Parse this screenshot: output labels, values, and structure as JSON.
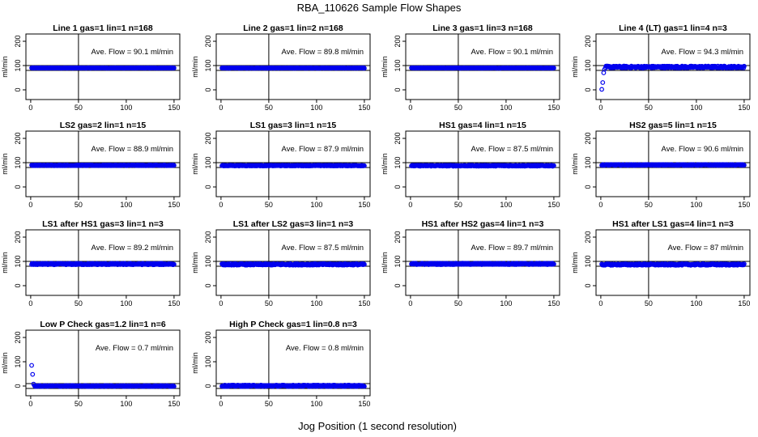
{
  "figure": {
    "title": "RBA_110626  Sample Flow Shapes",
    "xlabel": "Jog Position (1 second resolution)"
  },
  "chart_data": [
    {
      "type": "scatter",
      "title": "Line 1 gas=1 lin=1 n=168",
      "ylabel": "ml/min",
      "annotation": "Ave. Flow = 90.1  ml/min",
      "x_ticks": [
        0,
        50,
        100,
        150
      ],
      "y_ticks": [
        0,
        100,
        200
      ],
      "xlim": [
        0,
        150
      ],
      "ylim": [
        0,
        200
      ],
      "vline": 50,
      "hlines": [
        80,
        100
      ],
      "series": [
        {
          "name": "flow",
          "x_range": [
            1,
            150
          ],
          "level": 90,
          "jitter": 1,
          "start": []
        }
      ],
      "color": "#0000ee"
    },
    {
      "type": "scatter",
      "title": "Line 2 gas=1 lin=2 n=168",
      "ylabel": "ml/min",
      "annotation": "Ave. Flow = 89.8  ml/min",
      "x_ticks": [
        0,
        50,
        100,
        150
      ],
      "y_ticks": [
        0,
        100,
        200
      ],
      "xlim": [
        0,
        150
      ],
      "ylim": [
        0,
        200
      ],
      "vline": 50,
      "hlines": [
        80,
        100
      ],
      "series": [
        {
          "name": "flow",
          "x_range": [
            1,
            150
          ],
          "level": 89.8,
          "jitter": 1,
          "start": []
        }
      ],
      "color": "#0000ee"
    },
    {
      "type": "scatter",
      "title": "Line 3 gas=1 lin=3 n=168",
      "ylabel": "ml/min",
      "annotation": "Ave. Flow = 90.1  ml/min",
      "x_ticks": [
        0,
        50,
        100,
        150
      ],
      "y_ticks": [
        0,
        100,
        200
      ],
      "xlim": [
        0,
        150
      ],
      "ylim": [
        0,
        200
      ],
      "vline": 50,
      "hlines": [
        80,
        100
      ],
      "series": [
        {
          "name": "flow",
          "x_range": [
            1,
            150
          ],
          "level": 90,
          "jitter": 1,
          "start": []
        }
      ],
      "color": "#0000ee"
    },
    {
      "type": "scatter",
      "title": "Line 4 (LT) gas=1 lin=4 n=3",
      "ylabel": "ml/min",
      "annotation": "Ave. Flow = 94.3  ml/min",
      "x_ticks": [
        0,
        50,
        100,
        150
      ],
      "y_ticks": [
        0,
        100,
        200
      ],
      "xlim": [
        0,
        150
      ],
      "ylim": [
        0,
        200
      ],
      "vline": 50,
      "hlines": [
        80,
        100
      ],
      "series": [
        {
          "name": "flow",
          "x_range": [
            5,
            150
          ],
          "level": 94,
          "jitter": 4,
          "start": [
            [
              1,
              2
            ],
            [
              2,
              30
            ],
            [
              3,
              70
            ],
            [
              4,
              85
            ]
          ]
        }
      ],
      "color": "#0000ee"
    },
    {
      "type": "scatter",
      "title": "LS2 gas=2 lin=1 n=15",
      "ylabel": "ml/min",
      "annotation": "Ave. Flow = 88.9  ml/min",
      "x_ticks": [
        0,
        50,
        100,
        150
      ],
      "y_ticks": [
        0,
        100,
        200
      ],
      "xlim": [
        0,
        150
      ],
      "ylim": [
        0,
        200
      ],
      "vline": 50,
      "hlines": [
        80,
        100
      ],
      "series": [
        {
          "name": "flow",
          "x_range": [
            1,
            150
          ],
          "level": 89,
          "jitter": 1.5,
          "start": []
        }
      ],
      "color": "#0000ee"
    },
    {
      "type": "scatter",
      "title": "LS1 gas=3 lin=1 n=15",
      "ylabel": "ml/min",
      "annotation": "Ave. Flow = 87.9  ml/min",
      "x_ticks": [
        0,
        50,
        100,
        150
      ],
      "y_ticks": [
        0,
        100,
        200
      ],
      "xlim": [
        0,
        150
      ],
      "ylim": [
        0,
        200
      ],
      "vline": 50,
      "hlines": [
        80,
        100
      ],
      "series": [
        {
          "name": "flow",
          "x_range": [
            1,
            150
          ],
          "level": 88,
          "jitter": 1.5,
          "start": []
        }
      ],
      "color": "#0000ee"
    },
    {
      "type": "scatter",
      "title": "HS1 gas=4 lin=1 n=15",
      "ylabel": "ml/min",
      "annotation": "Ave. Flow = 87.5  ml/min",
      "x_ticks": [
        0,
        50,
        100,
        150
      ],
      "y_ticks": [
        0,
        100,
        200
      ],
      "xlim": [
        0,
        150
      ],
      "ylim": [
        0,
        200
      ],
      "vline": 50,
      "hlines": [
        80,
        100
      ],
      "series": [
        {
          "name": "flow",
          "x_range": [
            1,
            150
          ],
          "level": 87.5,
          "jitter": 2,
          "start": []
        }
      ],
      "color": "#0000ee"
    },
    {
      "type": "scatter",
      "title": "HS2 gas=5 lin=1 n=15",
      "ylabel": "ml/min",
      "annotation": "Ave. Flow = 90.6  ml/min",
      "x_ticks": [
        0,
        50,
        100,
        150
      ],
      "y_ticks": [
        0,
        100,
        200
      ],
      "xlim": [
        0,
        150
      ],
      "ylim": [
        0,
        200
      ],
      "vline": 50,
      "hlines": [
        80,
        100
      ],
      "series": [
        {
          "name": "flow",
          "x_range": [
            1,
            150
          ],
          "level": 90.6,
          "jitter": 2,
          "start": []
        }
      ],
      "color": "#0000ee"
    },
    {
      "type": "scatter",
      "title": "LS1 after HS1 gas=3 lin=1 n=3",
      "ylabel": "ml/min",
      "annotation": "Ave. Flow = 89.2  ml/min",
      "x_ticks": [
        0,
        50,
        100,
        150
      ],
      "y_ticks": [
        0,
        100,
        200
      ],
      "xlim": [
        0,
        150
      ],
      "ylim": [
        0,
        200
      ],
      "vline": 50,
      "hlines": [
        80,
        100
      ],
      "series": [
        {
          "name": "flow",
          "x_range": [
            1,
            150
          ],
          "level": 89,
          "jitter": 3,
          "start": []
        }
      ],
      "color": "#0000ee"
    },
    {
      "type": "scatter",
      "title": "LS1 after LS2 gas=3 lin=1 n=3",
      "ylabel": "ml/min",
      "annotation": "Ave. Flow = 87.5  ml/min",
      "x_ticks": [
        0,
        50,
        100,
        150
      ],
      "y_ticks": [
        0,
        100,
        200
      ],
      "xlim": [
        0,
        150
      ],
      "ylim": [
        0,
        200
      ],
      "vline": 50,
      "hlines": [
        80,
        100
      ],
      "series": [
        {
          "name": "flow",
          "x_range": [
            1,
            150
          ],
          "level": 87.5,
          "jitter": 3,
          "start": []
        }
      ],
      "color": "#0000ee"
    },
    {
      "type": "scatter",
      "title": "HS1 after HS2 gas=4 lin=1 n=3",
      "ylabel": "ml/min",
      "annotation": "Ave. Flow = 89.7  ml/min",
      "x_ticks": [
        0,
        50,
        100,
        150
      ],
      "y_ticks": [
        0,
        100,
        200
      ],
      "xlim": [
        0,
        150
      ],
      "ylim": [
        0,
        200
      ],
      "vline": 50,
      "hlines": [
        80,
        100
      ],
      "series": [
        {
          "name": "flow",
          "x_range": [
            1,
            150
          ],
          "level": 89.7,
          "jitter": 3,
          "start": []
        }
      ],
      "color": "#0000ee"
    },
    {
      "type": "scatter",
      "title": "HS1 after LS1 gas=4 lin=1 n=3",
      "ylabel": "ml/min",
      "annotation": "Ave. Flow = 87  ml/min",
      "x_ticks": [
        0,
        50,
        100,
        150
      ],
      "y_ticks": [
        0,
        100,
        200
      ],
      "xlim": [
        0,
        150
      ],
      "ylim": [
        0,
        200
      ],
      "vline": 50,
      "hlines": [
        80,
        100
      ],
      "series": [
        {
          "name": "flow",
          "x_range": [
            1,
            150
          ],
          "level": 87,
          "jitter": 3,
          "start": []
        }
      ],
      "color": "#0000ee"
    },
    {
      "type": "scatter",
      "title": "Low P Check gas=1.2 lin=1 n=6",
      "ylabel": "ml/min",
      "annotation": "Ave. Flow = 0.7  ml/min",
      "x_ticks": [
        0,
        50,
        100,
        150
      ],
      "y_ticks": [
        0,
        100,
        200
      ],
      "xlim": [
        0,
        150
      ],
      "ylim": [
        0,
        200
      ],
      "vline": 50,
      "hlines": [
        -10,
        10
      ],
      "series": [
        {
          "name": "flow",
          "x_range": [
            4,
            150
          ],
          "level": 0,
          "jitter": 2,
          "start": [
            [
              1,
              85
            ],
            [
              2,
              48
            ],
            [
              3,
              8
            ]
          ]
        }
      ],
      "color": "#0000ee"
    },
    {
      "type": "scatter",
      "title": "High P Check gas=1 lin=0.8 n=3",
      "ylabel": "ml/min",
      "annotation": "Ave. Flow = 0.8  ml/min",
      "x_ticks": [
        0,
        50,
        100,
        150
      ],
      "y_ticks": [
        0,
        100,
        200
      ],
      "xlim": [
        0,
        150
      ],
      "ylim": [
        0,
        200
      ],
      "vline": 50,
      "hlines": [
        -10,
        10
      ],
      "series": [
        {
          "name": "flow",
          "x_range": [
            1,
            150
          ],
          "level": 0.8,
          "jitter": 3,
          "start": []
        }
      ],
      "color": "#0000ee"
    }
  ]
}
